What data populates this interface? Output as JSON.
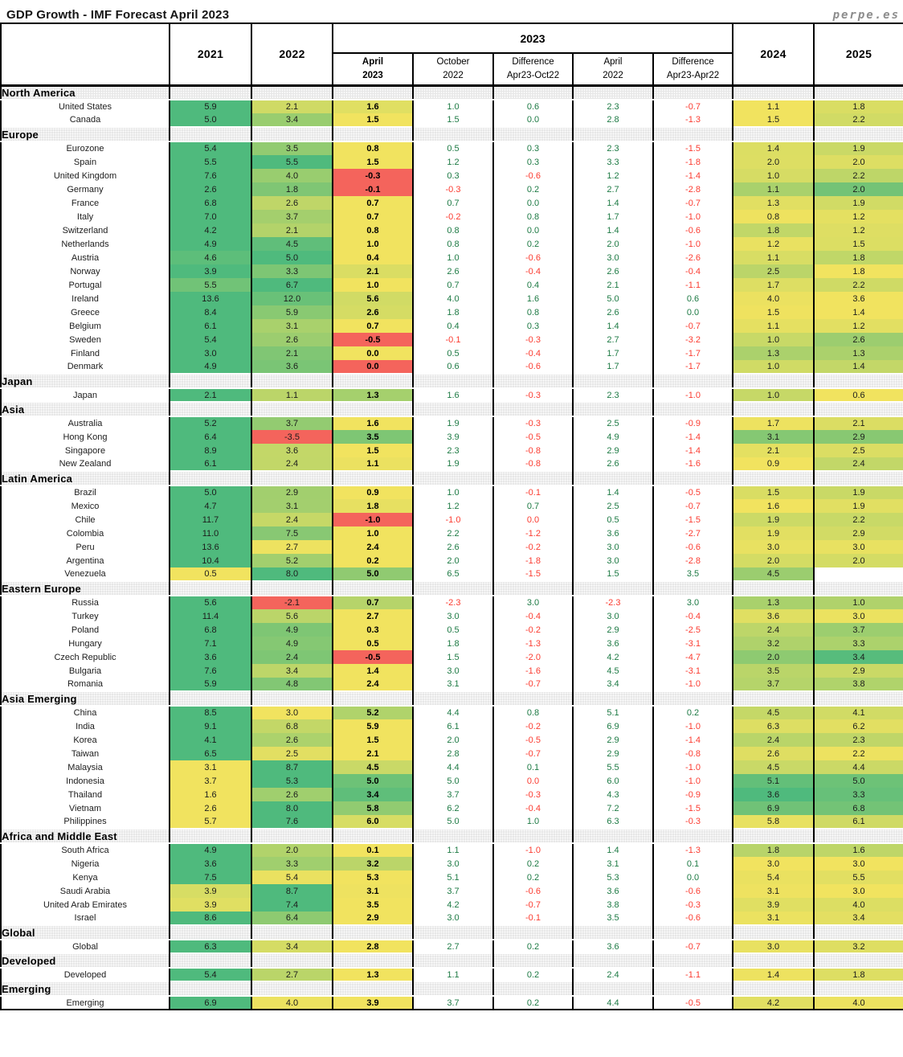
{
  "brand": "perpe.es",
  "colors": {
    "heat_green": "#4fba7d",
    "heat_yellow": "#f1e35f",
    "heat_red": "#f4645c",
    "pos_text": "#1d7a44",
    "neg_text": "#fb3b30",
    "section_band": "#e7e7e7",
    "grid": "#000000"
  },
  "chart_data": {
    "type": "table",
    "title": "GDP Growth - IMF Forecast April 2023",
    "header": {
      "y2021": "2021",
      "y2022": "2022",
      "group": "2023",
      "y2024": "2024",
      "y2025": "2025",
      "sub": [
        {
          "l1": "April",
          "l2": "2023"
        },
        {
          "l1": "October",
          "l2": "2022"
        },
        {
          "l1": "Difference",
          "l2": "Apr23-Oct22"
        },
        {
          "l1": "April",
          "l2": "2022"
        },
        {
          "l1": "Difference",
          "l2": "Apr23-Apr22"
        }
      ]
    },
    "column_keys": [
      "2021",
      "2022",
      "apr2023",
      "oct2022",
      "diff-apr23-oct22",
      "apr2022",
      "diff-apr23-apr22",
      "2024",
      "2025"
    ],
    "heat_columns": [
      0,
      1,
      2,
      7,
      8
    ],
    "sections": [
      {
        "name": "North America",
        "rows": [
          {
            "label": "United States",
            "values": [
              "5.9",
              "2.1",
              "1.6",
              "1.0",
              "0.6",
              "2.3",
              "-0.7",
              "1.1",
              "1.8"
            ]
          },
          {
            "label": "Canada",
            "values": [
              "5.0",
              "3.4",
              "1.5",
              "1.5",
              "0.0",
              "2.8",
              "-1.3",
              "1.5",
              "2.2"
            ]
          }
        ]
      },
      {
        "name": "Europe",
        "rows": [
          {
            "label": "Eurozone",
            "values": [
              "5.4",
              "3.5",
              "0.8",
              "0.5",
              "0.3",
              "2.3",
              "-1.5",
              "1.4",
              "1.9"
            ]
          },
          {
            "label": "Spain",
            "values": [
              "5.5",
              "5.5",
              "1.5",
              "1.2",
              "0.3",
              "3.3",
              "-1.8",
              "2.0",
              "2.0"
            ]
          },
          {
            "label": "United Kingdom",
            "values": [
              "7.6",
              "4.0",
              "-0.3",
              "0.3",
              "-0.6",
              "1.2",
              "-1.4",
              "1.0",
              "2.2"
            ]
          },
          {
            "label": "Germany",
            "values": [
              "2.6",
              "1.8",
              "-0.1",
              "-0.3",
              "0.2",
              "2.7",
              "-2.8",
              "1.1",
              "2.0"
            ]
          },
          {
            "label": "France",
            "values": [
              "6.8",
              "2.6",
              "0.7",
              "0.7",
              "0.0",
              "1.4",
              "-0.7",
              "1.3",
              "1.9"
            ]
          },
          {
            "label": "Italy",
            "values": [
              "7.0",
              "3.7",
              "0.7",
              "-0.2",
              "0.8",
              "1.7",
              "-1.0",
              "0.8",
              "1.2"
            ]
          },
          {
            "label": "Switzerland",
            "values": [
              "4.2",
              "2.1",
              "0.8",
              "0.8",
              "0.0",
              "1.4",
              "-0.6",
              "1.8",
              "1.2"
            ]
          },
          {
            "label": "Netherlands",
            "values": [
              "4.9",
              "4.5",
              "1.0",
              "0.8",
              "0.2",
              "2.0",
              "-1.0",
              "1.2",
              "1.5"
            ]
          },
          {
            "label": "Austria",
            "values": [
              "4.6",
              "5.0",
              "0.4",
              "1.0",
              "-0.6",
              "3.0",
              "-2.6",
              "1.1",
              "1.8"
            ]
          },
          {
            "label": "Norway",
            "values": [
              "3.9",
              "3.3",
              "2.1",
              "2.6",
              "-0.4",
              "2.6",
              "-0.4",
              "2.5",
              "1.8"
            ]
          },
          {
            "label": "Portugal",
            "values": [
              "5.5",
              "6.7",
              "1.0",
              "0.7",
              "0.4",
              "2.1",
              "-1.1",
              "1.7",
              "2.2"
            ]
          },
          {
            "label": "Ireland",
            "values": [
              "13.6",
              "12.0",
              "5.6",
              "4.0",
              "1.6",
              "5.0",
              "0.6",
              "4.0",
              "3.6"
            ]
          },
          {
            "label": "Greece",
            "values": [
              "8.4",
              "5.9",
              "2.6",
              "1.8",
              "0.8",
              "2.6",
              "0.0",
              "1.5",
              "1.4"
            ]
          },
          {
            "label": "Belgium",
            "values": [
              "6.1",
              "3.1",
              "0.7",
              "0.4",
              "0.3",
              "1.4",
              "-0.7",
              "1.1",
              "1.2"
            ]
          },
          {
            "label": "Sweden",
            "values": [
              "5.4",
              "2.6",
              "-0.5",
              "-0.1",
              "-0.3",
              "2.7",
              "-3.2",
              "1.0",
              "2.6"
            ]
          },
          {
            "label": "Finland",
            "values": [
              "3.0",
              "2.1",
              "0.0",
              "0.5",
              "-0.4",
              "1.7",
              "-1.7",
              "1.3",
              "1.3"
            ]
          },
          {
            "label": "Denmark",
            "values": [
              "4.9",
              "3.6",
              "-0.0",
              "0.6",
              "-0.6",
              "1.7",
              "-1.7",
              "1.0",
              "1.4"
            ]
          }
        ]
      },
      {
        "name": "Japan",
        "rows": [
          {
            "label": "Japan",
            "values": [
              "2.1",
              "1.1",
              "1.3",
              "1.6",
              "-0.3",
              "2.3",
              "-1.0",
              "1.0",
              "0.6"
            ]
          }
        ]
      },
      {
        "name": "Asia",
        "rows": [
          {
            "label": "Australia",
            "values": [
              "5.2",
              "3.7",
              "1.6",
              "1.9",
              "-0.3",
              "2.5",
              "-0.9",
              "1.7",
              "2.1"
            ]
          },
          {
            "label": "Hong Kong",
            "values": [
              "6.4",
              "-3.5",
              "3.5",
              "3.9",
              "-0.5",
              "4.9",
              "-1.4",
              "3.1",
              "2.9"
            ]
          },
          {
            "label": "Singapore",
            "values": [
              "8.9",
              "3.6",
              "1.5",
              "2.3",
              "-0.8",
              "2.9",
              "-1.4",
              "2.1",
              "2.5"
            ]
          },
          {
            "label": "New Zealand",
            "values": [
              "6.1",
              "2.4",
              "1.1",
              "1.9",
              "-0.8",
              "2.6",
              "-1.6",
              "0.9",
              "2.4"
            ]
          }
        ]
      },
      {
        "name": "Latin America",
        "rows": [
          {
            "label": "Brazil",
            "values": [
              "5.0",
              "2.9",
              "0.9",
              "1.0",
              "-0.1",
              "1.4",
              "-0.5",
              "1.5",
              "1.9"
            ]
          },
          {
            "label": "Mexico",
            "values": [
              "4.7",
              "3.1",
              "1.8",
              "1.2",
              "0.7",
              "2.5",
              "-0.7",
              "1.6",
              "1.9"
            ]
          },
          {
            "label": "Chile",
            "values": [
              "11.7",
              "2.4",
              "-1.0",
              "-1.0",
              "-0.0",
              "0.5",
              "-1.5",
              "1.9",
              "2.2"
            ]
          },
          {
            "label": "Colombia",
            "values": [
              "11.0",
              "7.5",
              "1.0",
              "2.2",
              "-1.2",
              "3.6",
              "-2.7",
              "1.9",
              "2.9"
            ]
          },
          {
            "label": "Peru",
            "values": [
              "13.6",
              "2.7",
              "2.4",
              "2.6",
              "-0.2",
              "3.0",
              "-0.6",
              "3.0",
              "3.0"
            ]
          },
          {
            "label": "Argentina",
            "values": [
              "10.4",
              "5.2",
              "0.2",
              "2.0",
              "-1.8",
              "3.0",
              "-2.8",
              "2.0",
              "2.0"
            ]
          },
          {
            "label": "Venezuela",
            "values": [
              "0.5",
              "8.0",
              "5.0",
              "6.5",
              "-1.5",
              "1.5",
              "3.5",
              "4.5",
              null
            ]
          }
        ]
      },
      {
        "name": "Eastern Europe",
        "rows": [
          {
            "label": "Russia",
            "values": [
              "5.6",
              "-2.1",
              "0.7",
              "-2.3",
              "3.0",
              "-2.3",
              "3.0",
              "1.3",
              "1.0"
            ]
          },
          {
            "label": "Turkey",
            "values": [
              "11.4",
              "5.6",
              "2.7",
              "3.0",
              "-0.4",
              "3.0",
              "-0.4",
              "3.6",
              "3.0"
            ]
          },
          {
            "label": "Poland",
            "values": [
              "6.8",
              "4.9",
              "0.3",
              "0.5",
              "-0.2",
              "2.9",
              "-2.5",
              "2.4",
              "3.7"
            ]
          },
          {
            "label": "Hungary",
            "values": [
              "7.1",
              "4.9",
              "0.5",
              "1.8",
              "-1.3",
              "3.6",
              "-3.1",
              "3.2",
              "3.3"
            ]
          },
          {
            "label": "Czech Republic",
            "values": [
              "3.6",
              "2.4",
              "-0.5",
              "1.5",
              "-2.0",
              "4.2",
              "-4.7",
              "2.0",
              "3.4"
            ]
          },
          {
            "label": "Bulgaria",
            "values": [
              "7.6",
              "3.4",
              "1.4",
              "3.0",
              "-1.6",
              "4.5",
              "-3.1",
              "3.5",
              "2.9"
            ]
          },
          {
            "label": "Romania",
            "values": [
              "5.9",
              "4.8",
              "2.4",
              "3.1",
              "-0.7",
              "3.4",
              "-1.0",
              "3.7",
              "3.8"
            ]
          }
        ]
      },
      {
        "name": "Asia Emerging",
        "rows": [
          {
            "label": "China",
            "values": [
              "8.5",
              "3.0",
              "5.2",
              "4.4",
              "0.8",
              "5.1",
              "0.2",
              "4.5",
              "4.1"
            ]
          },
          {
            "label": "India",
            "values": [
              "9.1",
              "6.8",
              "5.9",
              "6.1",
              "-0.2",
              "6.9",
              "-1.0",
              "6.3",
              "6.2"
            ]
          },
          {
            "label": "Korea",
            "values": [
              "4.1",
              "2.6",
              "1.5",
              "2.0",
              "-0.5",
              "2.9",
              "-1.4",
              "2.4",
              "2.3"
            ]
          },
          {
            "label": "Taiwan",
            "values": [
              "6.5",
              "2.5",
              "2.1",
              "2.8",
              "-0.7",
              "2.9",
              "-0.8",
              "2.6",
              "2.2"
            ]
          },
          {
            "label": "Malaysia",
            "values": [
              "3.1",
              "8.7",
              "4.5",
              "4.4",
              "0.1",
              "5.5",
              "-1.0",
              "4.5",
              "4.4"
            ]
          },
          {
            "label": "Indonesia",
            "values": [
              "3.7",
              "5.3",
              "5.0",
              "5.0",
              "-0.0",
              "6.0",
              "-1.0",
              "5.1",
              "5.0"
            ]
          },
          {
            "label": "Thailand",
            "values": [
              "1.6",
              "2.6",
              "3.4",
              "3.7",
              "-0.3",
              "4.3",
              "-0.9",
              "3.6",
              "3.3"
            ]
          },
          {
            "label": "Vietnam",
            "values": [
              "2.6",
              "8.0",
              "5.8",
              "6.2",
              "-0.4",
              "7.2",
              "-1.5",
              "6.9",
              "6.8"
            ]
          },
          {
            "label": "Philippines",
            "values": [
              "5.7",
              "7.6",
              "6.0",
              "5.0",
              "1.0",
              "6.3",
              "-0.3",
              "5.8",
              "6.1"
            ]
          }
        ]
      },
      {
        "name": "Africa and Middle East",
        "rows": [
          {
            "label": "South Africa",
            "values": [
              "4.9",
              "2.0",
              "0.1",
              "1.1",
              "-1.0",
              "1.4",
              "-1.3",
              "1.8",
              "1.6"
            ]
          },
          {
            "label": "Nigeria",
            "values": [
              "3.6",
              "3.3",
              "3.2",
              "3.0",
              "0.2",
              "3.1",
              "0.1",
              "3.0",
              "3.0"
            ]
          },
          {
            "label": "Kenya",
            "values": [
              "7.5",
              "5.4",
              "5.3",
              "5.1",
              "0.2",
              "5.3",
              "0.0",
              "5.4",
              "5.5"
            ]
          },
          {
            "label": "Saudi Arabia",
            "values": [
              "3.9",
              "8.7",
              "3.1",
              "3.7",
              "-0.6",
              "3.6",
              "-0.6",
              "3.1",
              "3.0"
            ]
          },
          {
            "label": "United Arab Emirates",
            "values": [
              "3.9",
              "7.4",
              "3.5",
              "4.2",
              "-0.7",
              "3.8",
              "-0.3",
              "3.9",
              "4.0"
            ]
          },
          {
            "label": "Israel",
            "values": [
              "8.6",
              "6.4",
              "2.9",
              "3.0",
              "-0.1",
              "3.5",
              "-0.6",
              "3.1",
              "3.4"
            ]
          }
        ]
      },
      {
        "name": "Global",
        "rows": [
          {
            "label": "Global",
            "values": [
              "6.3",
              "3.4",
              "2.8",
              "2.7",
              "0.2",
              "3.6",
              "-0.7",
              "3.0",
              "3.2"
            ]
          }
        ]
      },
      {
        "name": "Developed",
        "rows": [
          {
            "label": "Developed",
            "values": [
              "5.4",
              "2.7",
              "1.3",
              "1.1",
              "0.2",
              "2.4",
              "-1.1",
              "1.4",
              "1.8"
            ]
          }
        ]
      },
      {
        "name": "Emerging",
        "rows": [
          {
            "label": "Emerging",
            "values": [
              "6.9",
              "4.0",
              "3.9",
              "3.7",
              "0.2",
              "4.4",
              "-0.5",
              "4.2",
              "4.0"
            ]
          }
        ]
      }
    ]
  }
}
